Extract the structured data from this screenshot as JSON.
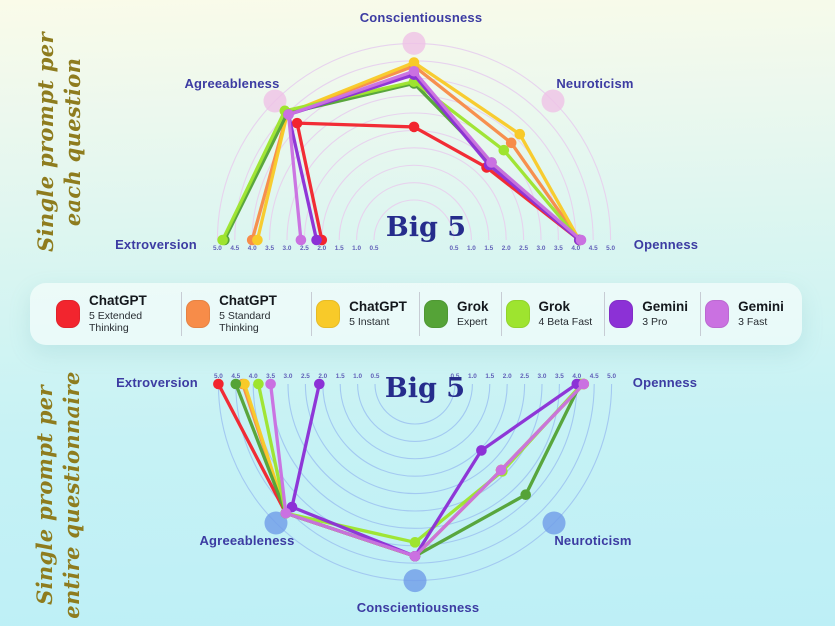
{
  "titles": {
    "top": {
      "line1": "Single prompt per",
      "line2": "each question"
    },
    "bottom": {
      "line1": "Single prompt per",
      "line2": "entire questionnaire"
    }
  },
  "legend": {
    "items": [
      {
        "name": "ChatGPT",
        "variant": "5 Extended Thinking",
        "color": "#f2252e"
      },
      {
        "name": "ChatGPT",
        "variant": "5 Standard Thinking",
        "color": "#f78c49"
      },
      {
        "name": "ChatGPT",
        "variant": "5 Instant",
        "color": "#f8ca29"
      },
      {
        "name": "Grok",
        "variant": "Expert",
        "color": "#55a337"
      },
      {
        "name": "Grok",
        "variant": "4 Beta Fast",
        "color": "#9ee42f"
      },
      {
        "name": "Gemini",
        "variant": "3 Pro",
        "color": "#8c31d6"
      },
      {
        "name": "Gemini",
        "variant": "3 Fast",
        "color": "#ca71e1"
      }
    ]
  },
  "chart_data": [
    {
      "type": "radar",
      "variant": "semicircle",
      "orientation": "up",
      "title": "Single prompt per each question",
      "center_label": "Big 5",
      "axes": [
        "Extroversion",
        "Agreeableness",
        "Conscientiousness",
        "Neuroticism",
        "Openness"
      ],
      "scale": {
        "min": 0,
        "max": 5,
        "step": 0.5,
        "ticks": [
          0.5,
          1.0,
          1.5,
          2.0,
          2.5,
          3.0,
          3.5,
          4.0,
          4.5,
          5.0
        ]
      },
      "grid": {
        "ring_color": "#e7d3ee",
        "marker_color": "#efc2e6",
        "marker_axes": [
          "Agreeableness",
          "Conscientiousness",
          "Neuroticism"
        ]
      },
      "series": [
        {
          "name": "ChatGPT 5 Extended Thinking",
          "color": "#f2252e",
          "values": [
            2.0,
            4.1,
            2.6,
            2.3,
            4.1
          ]
        },
        {
          "name": "ChatGPT 5 Standard Thinking",
          "color": "#f78c49",
          "values": [
            4.0,
            4.5,
            4.35,
            3.3,
            4.1
          ]
        },
        {
          "name": "ChatGPT 5 Instant",
          "color": "#f8ca29",
          "values": [
            3.85,
            4.5,
            4.45,
            3.65,
            4.1
          ]
        },
        {
          "name": "Grok Expert",
          "color": "#55a337",
          "values": [
            4.8,
            4.5,
            3.85,
            2.5,
            4.1
          ]
        },
        {
          "name": "Grok 4 Beta Fast",
          "color": "#9ee42f",
          "values": [
            4.85,
            4.6,
            3.9,
            3.0,
            4.1
          ]
        },
        {
          "name": "Gemini 3 Pro",
          "color": "#8c31d6",
          "values": [
            2.15,
            4.45,
            4.1,
            2.4,
            4.1
          ]
        },
        {
          "name": "Gemini 3 Fast",
          "color": "#ca71e1",
          "values": [
            2.6,
            4.45,
            4.2,
            2.5,
            4.15
          ]
        }
      ]
    },
    {
      "type": "radar",
      "variant": "semicircle",
      "orientation": "down",
      "title": "Single prompt per entire questionnaire",
      "center_label": "Big 5",
      "axes": [
        "Extroversion",
        "Agreeableness",
        "Conscientiousness",
        "Neuroticism",
        "Openness"
      ],
      "scale": {
        "min": 0,
        "max": 5,
        "step": 0.5,
        "ticks": [
          0.5,
          1.0,
          1.5,
          2.0,
          2.5,
          3.0,
          3.5,
          4.0,
          4.5,
          5.0
        ]
      },
      "grid": {
        "ring_color": "#a3c9f1",
        "marker_color": "#6f9ce8",
        "marker_axes": [
          "Agreeableness",
          "Conscientiousness",
          "Neuroticism"
        ]
      },
      "series": [
        {
          "name": "ChatGPT 5 Extended Thinking",
          "color": "#f2252e",
          "values": [
            5.0,
            4.6,
            4.3,
            2.85,
            4.2
          ]
        },
        {
          "name": "ChatGPT 5 Standard Thinking",
          "color": "#f78c49",
          "values": [
            4.3,
            4.6,
            4.3,
            2.85,
            4.2
          ]
        },
        {
          "name": "ChatGPT 5 Instant",
          "color": "#f8ca29",
          "values": [
            4.25,
            4.6,
            4.3,
            2.85,
            4.2
          ]
        },
        {
          "name": "Grok Expert",
          "color": "#55a337",
          "values": [
            4.5,
            4.6,
            4.3,
            3.85,
            4.1
          ]
        },
        {
          "name": "Grok 4 Beta Fast",
          "color": "#9ee42f",
          "values": [
            3.85,
            4.6,
            3.9,
            2.9,
            4.15
          ]
        },
        {
          "name": "Gemini 3 Pro",
          "color": "#8c31d6",
          "values": [
            2.1,
            4.35,
            4.3,
            2.05,
            4.0
          ]
        },
        {
          "name": "Gemini 3 Fast",
          "color": "#ca71e1",
          "values": [
            3.5,
            4.6,
            4.3,
            2.85,
            4.2
          ]
        }
      ]
    }
  ]
}
